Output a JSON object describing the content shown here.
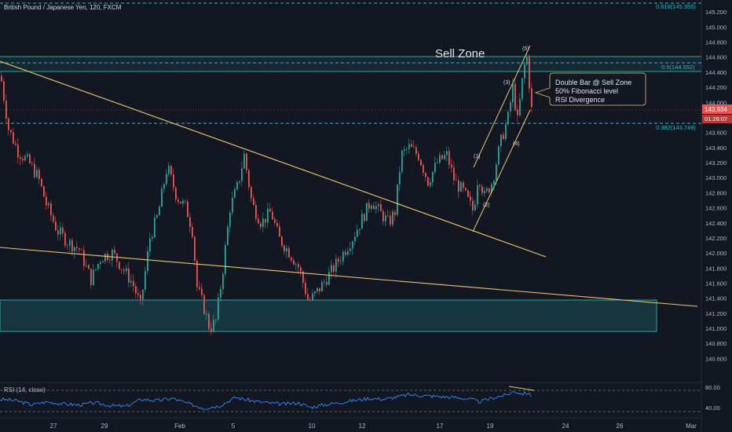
{
  "header": {
    "symbol_line": "British Pound / Japanese Yen, 120, FXCM"
  },
  "annotations": {
    "sell_zone": "Sell Zone",
    "callout_lines": [
      "Double Bar @ Sell Zone",
      "50% Fibonacci level",
      "RSI Divergence"
    ],
    "waves": [
      "(1)",
      "(2)",
      "(3)",
      "(4)",
      "(5)"
    ],
    "fib_levels": [
      {
        "label": "0.618(145.355)",
        "price": 145.355
      },
      {
        "label": "0.5(144.552)",
        "price": 144.552
      },
      {
        "label": "0.382(143.749)",
        "price": 143.749
      }
    ]
  },
  "price_axis": {
    "ticks": [
      "145.200",
      "145.000",
      "144.800",
      "144.600",
      "144.400",
      "144.200",
      "144.000",
      "143.800",
      "143.600",
      "143.400",
      "143.200",
      "143.000",
      "142.800",
      "142.600",
      "142.400",
      "142.200",
      "142.000",
      "141.800",
      "141.600",
      "141.400",
      "141.200",
      "141.000",
      "140.800",
      "140.600"
    ],
    "last_price": "143.934",
    "countdown": "01:26:07"
  },
  "time_axis": {
    "ticks": [
      "27",
      "29",
      "Feb",
      "5",
      "10",
      "12",
      "17",
      "19",
      "24",
      "26",
      "Mar"
    ]
  },
  "rsi": {
    "label": "RSI (14, close)",
    "ticks": [
      "80.00",
      "40.00"
    ]
  },
  "colors": {
    "background": "#131722",
    "up": "#26a69a",
    "down": "#ef5350",
    "trendline": "#e9c46a",
    "zone": "#26a6a6",
    "fib": "#2bb7c8",
    "rsi_line": "#2d8cff",
    "price_tag": "#ef5350"
  },
  "chart_data": {
    "type": "candlestick",
    "symbol": "British Pound / Japanese Yen",
    "timeframe": "120",
    "source": "FXCM",
    "ylim": [
      140.5,
      145.4
    ],
    "last_close": 143.934,
    "sell_zone": [
      144.52,
      144.67
    ],
    "support_zone": [
      141.0,
      141.4
    ],
    "path": [
      [
        0,
        144.35
      ],
      [
        10,
        143.65
      ],
      [
        22,
        143.35
      ],
      [
        36,
        143.2
      ],
      [
        48,
        143.0
      ],
      [
        58,
        142.65
      ],
      [
        72,
        142.3
      ],
      [
        85,
        142.15
      ],
      [
        100,
        142.05
      ],
      [
        115,
        141.65
      ],
      [
        128,
        141.95
      ],
      [
        142,
        142.0
      ],
      [
        155,
        141.8
      ],
      [
        168,
        141.6
      ],
      [
        178,
        141.3
      ],
      [
        190,
        142.2
      ],
      [
        200,
        142.5
      ],
      [
        212,
        143.15
      ],
      [
        224,
        142.75
      ],
      [
        236,
        142.6
      ],
      [
        244,
        142.3
      ],
      [
        250,
        141.55
      ],
      [
        258,
        141.3
      ],
      [
        266,
        141.0
      ],
      [
        274,
        141.1
      ],
      [
        282,
        141.7
      ],
      [
        292,
        142.6
      ],
      [
        302,
        142.9
      ],
      [
        310,
        143.3
      ],
      [
        320,
        142.65
      ],
      [
        332,
        142.4
      ],
      [
        344,
        142.55
      ],
      [
        354,
        142.2
      ],
      [
        368,
        142.0
      ],
      [
        380,
        141.8
      ],
      [
        392,
        141.35
      ],
      [
        404,
        141.5
      ],
      [
        414,
        141.65
      ],
      [
        424,
        141.8
      ],
      [
        436,
        142.0
      ],
      [
        448,
        142.2
      ],
      [
        460,
        142.45
      ],
      [
        472,
        142.7
      ],
      [
        482,
        142.55
      ],
      [
        494,
        142.4
      ],
      [
        502,
        142.55
      ],
      [
        510,
        143.3
      ],
      [
        520,
        143.4
      ],
      [
        532,
        143.3
      ],
      [
        544,
        142.95
      ],
      [
        556,
        143.2
      ],
      [
        568,
        143.3
      ],
      [
        578,
        142.95
      ],
      [
        590,
        142.8
      ],
      [
        602,
        142.55
      ],
      [
        608,
        143.05
      ],
      [
        616,
        142.75
      ],
      [
        626,
        142.95
      ],
      [
        636,
        143.45
      ],
      [
        646,
        143.8
      ],
      [
        652,
        144.2
      ],
      [
        658,
        143.75
      ],
      [
        666,
        144.45
      ],
      [
        670,
        144.6
      ],
      [
        676,
        143.9
      ]
    ],
    "rsi_path": [
      [
        0,
        58
      ],
      [
        20,
        55
      ],
      [
        40,
        46
      ],
      [
        60,
        52
      ],
      [
        80,
        48
      ],
      [
        100,
        45
      ],
      [
        120,
        50
      ],
      [
        140,
        44
      ],
      [
        160,
        42
      ],
      [
        180,
        58
      ],
      [
        200,
        55
      ],
      [
        220,
        60
      ],
      [
        240,
        48
      ],
      [
        260,
        38
      ],
      [
        280,
        44
      ],
      [
        300,
        62
      ],
      [
        320,
        55
      ],
      [
        340,
        50
      ],
      [
        360,
        47
      ],
      [
        380,
        50
      ],
      [
        395,
        40
      ],
      [
        410,
        45
      ],
      [
        430,
        50
      ],
      [
        450,
        55
      ],
      [
        470,
        60
      ],
      [
        490,
        58
      ],
      [
        505,
        63
      ],
      [
        520,
        68
      ],
      [
        540,
        66
      ],
      [
        560,
        64
      ],
      [
        580,
        62
      ],
      [
        600,
        58
      ],
      [
        610,
        52
      ],
      [
        625,
        60
      ],
      [
        645,
        68
      ],
      [
        655,
        76
      ],
      [
        665,
        70
      ],
      [
        672,
        72
      ],
      [
        676,
        65
      ]
    ]
  }
}
